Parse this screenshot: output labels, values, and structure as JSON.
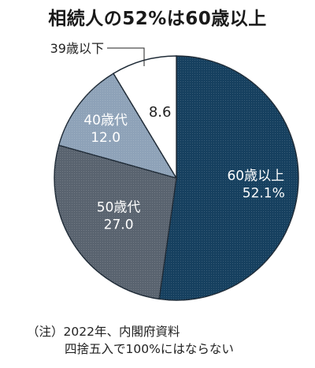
{
  "chart_data": {
    "type": "pie",
    "title": "相続人の52%は60歳以上",
    "slices": [
      {
        "label": "60歳以上",
        "value": 52.1,
        "value_label": "52.1%",
        "color": "#16405f"
      },
      {
        "label": "50歳代",
        "value": 27.0,
        "value_label": "27.0",
        "color": "#59636f"
      },
      {
        "label": "40歳代",
        "value": 12.0,
        "value_label": "12.0",
        "color": "#8ea2b8"
      },
      {
        "label": "39歳以下",
        "value": 8.6,
        "value_label": "8.6",
        "color": "#ffffff"
      }
    ],
    "start": "12 o'clock",
    "direction": "clockwise"
  },
  "note": {
    "line1": "（注）2022年、内閣府資料",
    "line2": "四捨五入で100%にはならない"
  }
}
